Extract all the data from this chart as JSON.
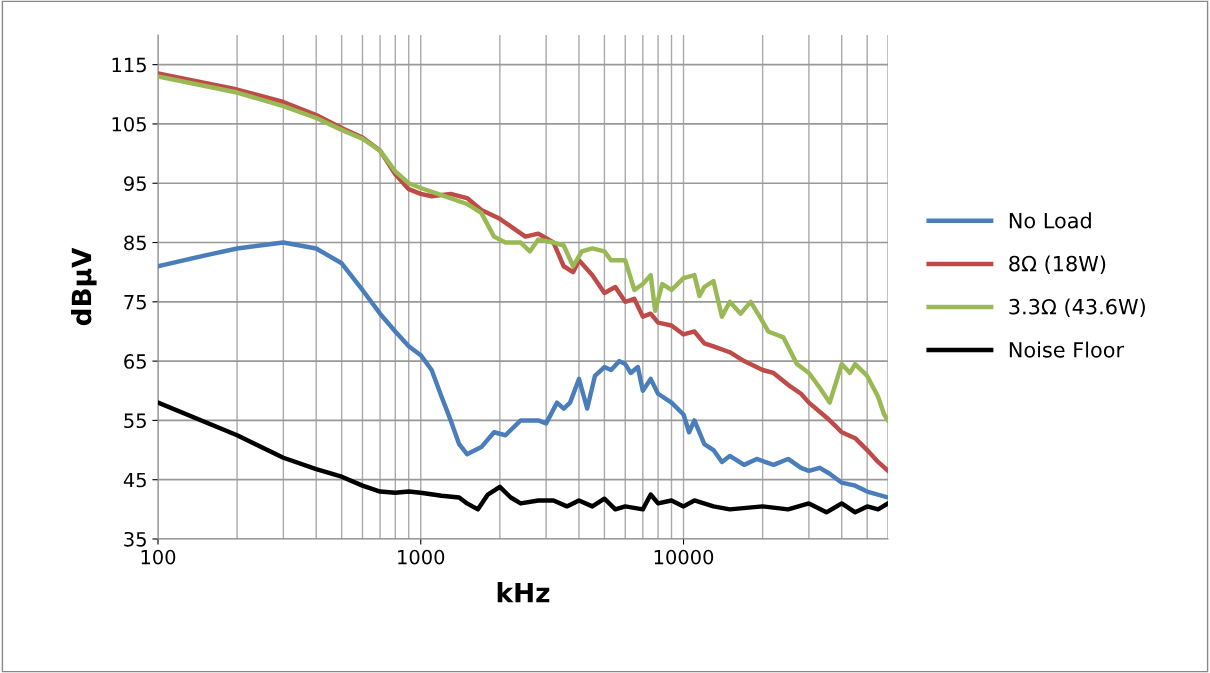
{
  "chart_data": {
    "type": "line",
    "xlabel": "kHz",
    "ylabel": "dBµV",
    "log": "x",
    "grid": true,
    "legend": "right",
    "xlim": [
      100,
      60000
    ],
    "xticks": [
      100,
      1000,
      10000
    ],
    "ylim": [
      35,
      120
    ],
    "yticks": [
      35,
      45,
      55,
      65,
      75,
      85,
      95,
      105,
      115
    ],
    "series": [
      {
        "name": "No Load",
        "color": "#4a7ebb",
        "x": [
          100,
          150,
          200,
          300,
          400,
          500,
          600,
          700,
          800,
          900,
          1000,
          1100,
          1200,
          1300,
          1400,
          1500,
          1700,
          1900,
          2100,
          2400,
          2800,
          3000,
          3300,
          3500,
          3700,
          4000,
          4300,
          4600,
          5000,
          5300,
          5700,
          6000,
          6300,
          6700,
          7000,
          7500,
          8000,
          9000,
          10000,
          10500,
          11000,
          12000,
          13000,
          14000,
          15000,
          17000,
          19000,
          22000,
          25000,
          28000,
          30000,
          33000,
          36000,
          40000,
          45000,
          50000,
          60000
        ],
        "values": [
          81,
          82.8,
          84,
          85,
          84,
          81.5,
          77,
          73,
          70,
          67.5,
          66,
          63.5,
          59,
          55,
          51,
          49.3,
          50.5,
          53,
          52.5,
          55,
          55,
          54.5,
          58,
          57,
          58,
          62,
          57,
          62.5,
          64,
          63.5,
          65,
          64.5,
          63,
          64,
          60,
          62,
          59.5,
          58,
          56,
          53,
          55,
          51,
          50,
          48,
          49,
          47.5,
          48.5,
          47.5,
          48.5,
          47,
          46.5,
          47,
          46,
          44.5,
          44,
          43,
          42
        ]
      },
      {
        "name": "8Ω (18W)",
        "color": "#be4b48",
        "x": [
          100,
          200,
          300,
          400,
          500,
          600,
          700,
          800,
          900,
          1000,
          1100,
          1300,
          1500,
          1700,
          2000,
          2500,
          2800,
          3200,
          3500,
          3800,
          4000,
          4500,
          5000,
          5500,
          6000,
          6500,
          7000,
          7500,
          8000,
          9000,
          10000,
          11000,
          12000,
          13000,
          15000,
          17000,
          20000,
          22000,
          25000,
          28000,
          30000,
          35000,
          38000,
          40000,
          45000,
          50000,
          55000,
          60000
        ],
        "values": [
          113.5,
          110.8,
          108.7,
          106.5,
          104.3,
          102.7,
          100.5,
          96.5,
          94,
          93.2,
          92.8,
          93.2,
          92.5,
          90.5,
          89,
          86,
          86.5,
          85,
          81,
          80,
          82,
          79.5,
          76.5,
          77.5,
          75,
          75.5,
          72.5,
          73,
          71.5,
          71,
          69.5,
          70,
          68,
          67.5,
          66.5,
          65,
          63.5,
          63,
          61,
          59.5,
          58,
          55.5,
          54,
          53,
          52,
          50,
          48,
          46.5
        ]
      },
      {
        "name": "3.3Ω (43.6W)",
        "color": "#98b954",
        "x": [
          100,
          200,
          300,
          400,
          500,
          600,
          700,
          800,
          900,
          1000,
          1200,
          1500,
          1700,
          1900,
          2100,
          2400,
          2600,
          2800,
          3200,
          3500,
          3800,
          4100,
          4500,
          5000,
          5300,
          6000,
          6500,
          7000,
          7500,
          7800,
          8300,
          9000,
          10000,
          11000,
          11500,
          12000,
          13000,
          14000,
          15000,
          16500,
          18000,
          19500,
          21000,
          24000,
          27000,
          30000,
          33000,
          36000,
          40000,
          43000,
          45000,
          50000,
          55000,
          58000,
          60000
        ],
        "values": [
          113,
          110.3,
          108,
          106,
          104,
          102.5,
          100.5,
          97,
          95,
          94.2,
          93,
          91.5,
          90,
          86,
          85,
          85,
          83.5,
          85.5,
          85,
          84.5,
          81,
          83.5,
          84,
          83.5,
          82,
          82,
          77,
          78,
          79.5,
          73.5,
          78,
          77,
          79,
          79.5,
          76,
          77.5,
          78.5,
          72.5,
          75,
          73,
          75,
          72.5,
          70,
          69,
          64.5,
          63,
          60.5,
          58,
          64.5,
          63,
          64.5,
          62.5,
          59,
          56,
          55
        ]
      },
      {
        "name": "Noise Floor",
        "color": "#000000",
        "x": [
          100,
          200,
          300,
          400,
          500,
          600,
          700,
          800,
          900,
          1000,
          1200,
          1400,
          1500,
          1650,
          1800,
          2000,
          2200,
          2400,
          2800,
          3200,
          3600,
          4000,
          4500,
          5000,
          5500,
          6000,
          7000,
          7500,
          8000,
          9000,
          10000,
          11000,
          13000,
          15000,
          20000,
          25000,
          30000,
          35000,
          40000,
          45000,
          50000,
          55000,
          60000
        ],
        "values": [
          58,
          52.5,
          48.7,
          46.8,
          45.5,
          44,
          43,
          42.8,
          43,
          42.8,
          42.3,
          42,
          41,
          40,
          42.5,
          43.8,
          42,
          41,
          41.5,
          41.5,
          40.5,
          41.5,
          40.5,
          41.8,
          40,
          40.5,
          40,
          42.5,
          41,
          41.5,
          40.5,
          41.5,
          40.5,
          40,
          40.5,
          40,
          41,
          39.5,
          41,
          39.5,
          40.5,
          40,
          41
        ]
      }
    ]
  }
}
